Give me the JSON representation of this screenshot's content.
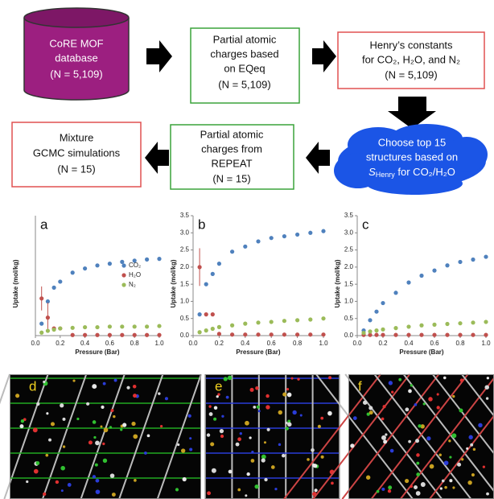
{
  "diagram": {
    "nodes": [
      {
        "lines": [
          "CoRE MOF",
          "database",
          "(N = 5,109)"
        ]
      },
      {
        "lines": [
          "Partial atomic",
          "charges based",
          "on EQeq",
          "(N = 5,109)"
        ]
      },
      {
        "lines": [
          "Henry’s constants",
          "for CO₂, H₂O, and N₂",
          "(N = 5,109)"
        ]
      },
      {
        "lines": [
          "Choose top 15",
          "structures based on"
        ],
        "last": {
          "s": "S",
          "sub": "Henry",
          "rest": " for CO₂/H₂O"
        }
      },
      {
        "lines": [
          "Partial atomic",
          "charges from",
          "REPEAT",
          "(N = 15)"
        ]
      },
      {
        "lines": [
          "Mixture",
          "GCMC simulations",
          "(N = 15)"
        ]
      }
    ]
  },
  "chart_data": [
    {
      "type": "scatter",
      "panel": "a",
      "x_label": "Pressure (Bar)",
      "y_label": "Uptake (mol/kg)",
      "legend": true,
      "x": [
        0.05,
        0.1,
        0.15,
        0.2,
        0.3,
        0.4,
        0.5,
        0.6,
        0.7,
        0.8,
        0.9,
        1.0
      ],
      "xlim": [
        0,
        1
      ],
      "xticks": [
        {
          "value": 0,
          "label": "0.0"
        },
        {
          "value": 0.2,
          "label": "0.2"
        },
        {
          "value": 0.4,
          "label": "0.4"
        },
        {
          "value": 0.6,
          "label": "0.6"
        },
        {
          "value": 0.8,
          "label": "0.8"
        },
        {
          "value": 1,
          "label": "1.0"
        }
      ],
      "ylim": [
        0,
        2
      ],
      "series": [
        {
          "name": "CO₂",
          "color": "#4f81bd",
          "values": [
            0.2,
            0.57,
            0.8,
            0.9,
            1.05,
            1.12,
            1.17,
            1.2,
            1.23,
            1.25,
            1.27,
            1.28
          ]
        },
        {
          "name": "H₂O",
          "color": "#c0504d",
          "values": [
            0.62,
            0.3,
            0.12,
            0.12,
            0.01,
            0.01,
            0.01,
            0.01,
            0.01,
            0.01,
            0.01,
            0.01
          ],
          "errors": [
            0.2,
            0.25,
            null,
            null,
            null,
            null,
            null,
            null,
            null,
            null,
            null,
            null
          ]
        },
        {
          "name": "N₂",
          "color": "#9bbb59",
          "values": [
            0.05,
            0.08,
            0.1,
            0.12,
            0.13,
            0.14,
            0.14,
            0.15,
            0.15,
            0.15,
            0.15,
            0.16
          ]
        }
      ]
    },
    {
      "type": "scatter",
      "panel": "b",
      "x_label": "Pressure (Bar)",
      "y_label": "Uptake (mol/kg)",
      "legend": false,
      "x": [
        0.05,
        0.1,
        0.15,
        0.2,
        0.3,
        0.4,
        0.5,
        0.6,
        0.7,
        0.8,
        0.9,
        1.0
      ],
      "xlim": [
        0,
        1
      ],
      "xticks": [
        {
          "value": 0,
          "label": "0.0"
        },
        {
          "value": 0.2,
          "label": "0.2"
        },
        {
          "value": 0.4,
          "label": "0.4"
        },
        {
          "value": 0.6,
          "label": "0.6"
        },
        {
          "value": 0.8,
          "label": "0.8"
        },
        {
          "value": 1,
          "label": "1.0"
        }
      ],
      "ylim": [
        0,
        3.5
      ],
      "yticks": [
        {
          "value": 0,
          "label": "0.0"
        },
        0.5,
        {
          "value": 1,
          "label": "1.0"
        },
        1.5,
        {
          "value": 2,
          "label": "2.0"
        },
        2.5,
        {
          "value": 3,
          "label": "3.0"
        },
        3.5
      ],
      "series": [
        {
          "name": "CO₂",
          "color": "#4f81bd",
          "values": [
            0.62,
            1.5,
            1.8,
            2.1,
            2.45,
            2.6,
            2.75,
            2.85,
            2.9,
            2.95,
            3.0,
            3.05
          ]
        },
        {
          "name": "H₂O",
          "color": "#c0504d",
          "values": [
            2.0,
            0.62,
            0.62,
            0.05,
            0.03,
            0.03,
            0.03,
            0.03,
            0.03,
            0.03,
            0.03,
            0.03
          ],
          "errors": [
            0.55,
            null,
            null,
            null,
            null,
            null,
            null,
            null,
            null,
            null,
            null,
            null
          ]
        },
        {
          "name": "N₂",
          "color": "#9bbb59",
          "values": [
            0.1,
            0.15,
            0.2,
            0.25,
            0.3,
            0.35,
            0.38,
            0.4,
            0.43,
            0.45,
            0.47,
            0.5
          ]
        }
      ]
    },
    {
      "type": "scatter",
      "panel": "c",
      "x_label": "Pressure (Bar)",
      "y_label": "Uptake (mol/kg)",
      "legend": false,
      "x": [
        0.05,
        0.1,
        0.15,
        0.2,
        0.3,
        0.4,
        0.5,
        0.6,
        0.7,
        0.8,
        0.9,
        1.0
      ],
      "xlim": [
        0,
        1
      ],
      "xticks": [
        {
          "value": 0,
          "label": "0.0"
        },
        {
          "value": 0.2,
          "label": "0.2"
        },
        {
          "value": 0.4,
          "label": "0.4"
        },
        {
          "value": 0.6,
          "label": "0.6"
        },
        {
          "value": 0.8,
          "label": "0.8"
        },
        {
          "value": 1,
          "label": "1.0"
        }
      ],
      "ylim": [
        0,
        3.5
      ],
      "yticks": [
        {
          "value": 0,
          "label": "0.0"
        },
        0.5,
        {
          "value": 1,
          "label": "1.0"
        },
        1.5,
        {
          "value": 2,
          "label": "2.0"
        },
        2.5,
        {
          "value": 3,
          "label": "3.0"
        },
        3.5
      ],
      "series": [
        {
          "name": "CO₂",
          "color": "#4f81bd",
          "values": [
            0.15,
            0.45,
            0.7,
            0.95,
            1.25,
            1.55,
            1.75,
            1.9,
            2.05,
            2.15,
            2.22,
            2.3
          ]
        },
        {
          "name": "H₂O",
          "color": "#c0504d",
          "values": [
            0.02,
            0.02,
            0.02,
            0.02,
            0.02,
            0.02,
            0.02,
            0.02,
            0.02,
            0.02,
            0.02,
            0.02
          ]
        },
        {
          "name": "N₂",
          "color": "#9bbb59",
          "values": [
            0.08,
            0.12,
            0.15,
            0.18,
            0.22,
            0.26,
            0.3,
            0.32,
            0.34,
            0.36,
            0.38,
            0.4
          ]
        }
      ]
    }
  ],
  "images": [
    {
      "label": "d"
    },
    {
      "label": "e"
    },
    {
      "label": "f"
    }
  ]
}
